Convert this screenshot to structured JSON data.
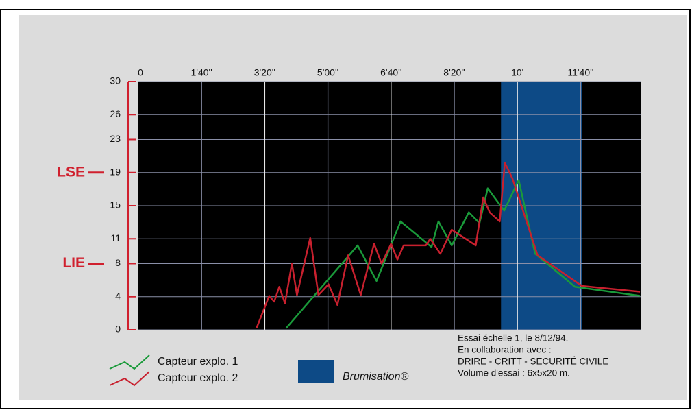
{
  "chart_data": {
    "type": "line",
    "xlim": [
      0,
      795
    ],
    "ylim": [
      0,
      30
    ],
    "xticks": [
      0,
      {
        "value": 100,
        "label": "1'40''"
      },
      {
        "value": 200,
        "label": "3'20''"
      },
      {
        "value": 300,
        "label": "5'00''"
      },
      {
        "value": 400,
        "label": "6'40''"
      },
      {
        "value": 500,
        "label": "8'20''"
      },
      {
        "value": 600,
        "label": "10'"
      },
      {
        "value": 700,
        "label": "11'40''"
      }
    ],
    "yticks": [
      0,
      4,
      8,
      11,
      15,
      19,
      23,
      26,
      30
    ],
    "grid": true,
    "limits": [
      {
        "text": "LSE",
        "value": 19,
        "color": "#d0202e"
      },
      {
        "text": "LIE",
        "value": 8,
        "color": "#d0202e"
      }
    ],
    "shaded": {
      "label": "Brumisation®",
      "color": "#0d4a86",
      "x": [
        574,
        702
      ]
    },
    "series": [
      {
        "name": "Capteur explo. 1",
        "color": "#1a9a3a",
        "x": [
          234,
          347,
          377,
          415,
          464,
          475,
          496,
          523,
          540,
          553,
          579,
          602,
          628,
          691,
          794
        ],
        "values": [
          0.2,
          10.2,
          5.9,
          13.1,
          10,
          13.1,
          10.2,
          14.2,
          12.9,
          17.1,
          14.4,
          18.1,
          9.2,
          5.2,
          4.1
        ]
      },
      {
        "name": "Capteur explo. 2",
        "color": "#c8202e",
        "x": [
          187,
          207,
          215,
          223,
          232,
          243,
          251,
          272,
          285,
          301,
          315,
          332,
          352,
          373,
          385,
          400,
          410,
          420,
          455,
          462,
          478,
          496,
          534,
          546,
          556,
          572,
          580,
          592,
          632,
          702,
          794
        ],
        "values": [
          0.2,
          4.1,
          3.4,
          5.2,
          3.2,
          8.0,
          4.2,
          11.1,
          4.2,
          5.5,
          3.0,
          9.0,
          4.2,
          10.4,
          8.0,
          10.4,
          8.5,
          10.2,
          10.2,
          11.0,
          9.2,
          12.1,
          10.2,
          16.0,
          14.2,
          13.1,
          20.2,
          18.3,
          9.0,
          5.3,
          4.6
        ]
      }
    ],
    "annotations": [
      "Essai échelle 1, le 8/12/94.",
      "En collaboration avec :",
      "DRIRE - CRITT - SECURITÉ CIVILE",
      "Volume d'essai : 6x5x20 m."
    ]
  }
}
